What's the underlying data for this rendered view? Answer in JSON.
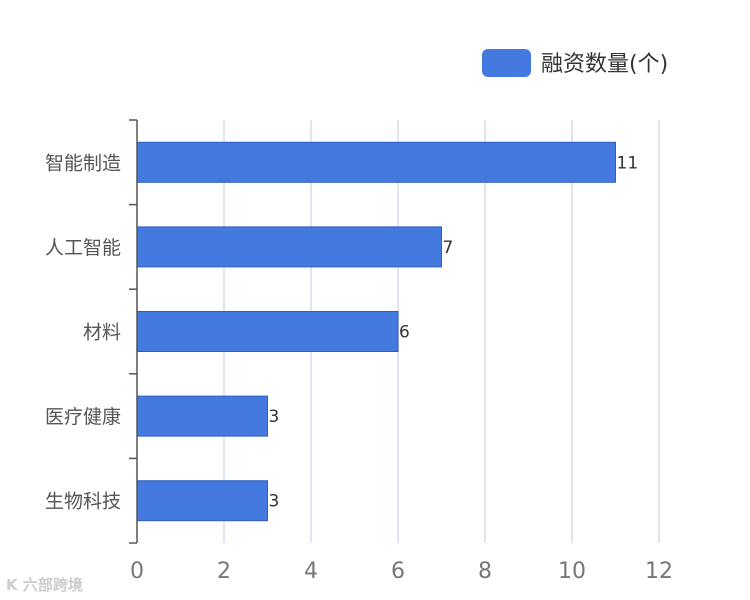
{
  "chart_data": {
    "type": "bar",
    "orientation": "horizontal",
    "categories": [
      "智能制造",
      "人工智能",
      "材料",
      "医疗健康",
      "生物科技"
    ],
    "series": [
      {
        "name": "融资数量(个)",
        "values": [
          11,
          7,
          6,
          3,
          3
        ]
      }
    ],
    "xlim": [
      0,
      12
    ],
    "x_ticks": [
      0,
      2,
      4,
      6,
      8,
      10,
      12
    ],
    "grid": true,
    "legend_position": "top-right",
    "data_labels": true,
    "colors": {
      "bar": "#4479e0",
      "grid": "#d6dde8",
      "axis": "#555555"
    }
  },
  "watermark": {
    "text": "K 六部跨境"
  }
}
